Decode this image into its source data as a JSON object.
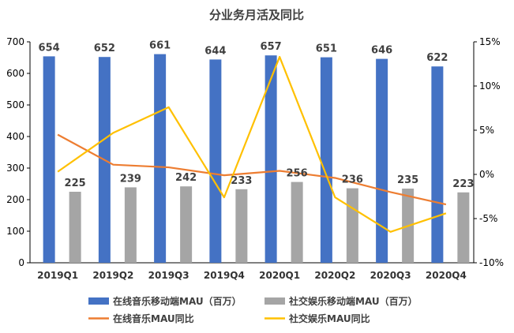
{
  "chart_data": {
    "type": "bar",
    "title": "分业务月活及同比",
    "categories": [
      "2019Q1",
      "2019Q2",
      "2019Q3",
      "2019Q4",
      "2020Q1",
      "2020Q2",
      "2020Q3",
      "2020Q4"
    ],
    "series": [
      {
        "name": "在线音乐移动端MAU（百万）",
        "type": "bar",
        "axis": "left",
        "color": "#4472C4",
        "values": [
          654,
          652,
          661,
          644,
          657,
          651,
          646,
          622
        ]
      },
      {
        "name": "社交娱乐移动端MAU（百万）",
        "type": "bar",
        "axis": "left",
        "color": "#A5A5A5",
        "values": [
          225,
          239,
          242,
          233,
          256,
          236,
          235,
          223
        ]
      },
      {
        "name": "在线音乐MAU同比",
        "type": "line",
        "axis": "right",
        "color": "#ED7D31",
        "values": [
          4.5,
          1.1,
          0.8,
          -0.1,
          0.4,
          -0.4,
          -2.0,
          -3.4
        ]
      },
      {
        "name": "社交娱乐MAU同比",
        "type": "line",
        "axis": "right",
        "color": "#FFC000",
        "values": [
          0.3,
          4.7,
          7.6,
          -2.6,
          13.3,
          -2.6,
          -6.5,
          -4.4
        ]
      }
    ],
    "y_left": {
      "min": 0,
      "max": 700,
      "ticks": [
        0,
        100,
        200,
        300,
        400,
        500,
        600,
        700
      ]
    },
    "y_right": {
      "min": -10,
      "max": 15,
      "ticks": [
        "-10%",
        "-5%",
        "0%",
        "5%",
        "10%",
        "15%"
      ]
    },
    "legend_position": "bottom",
    "grid": false
  }
}
